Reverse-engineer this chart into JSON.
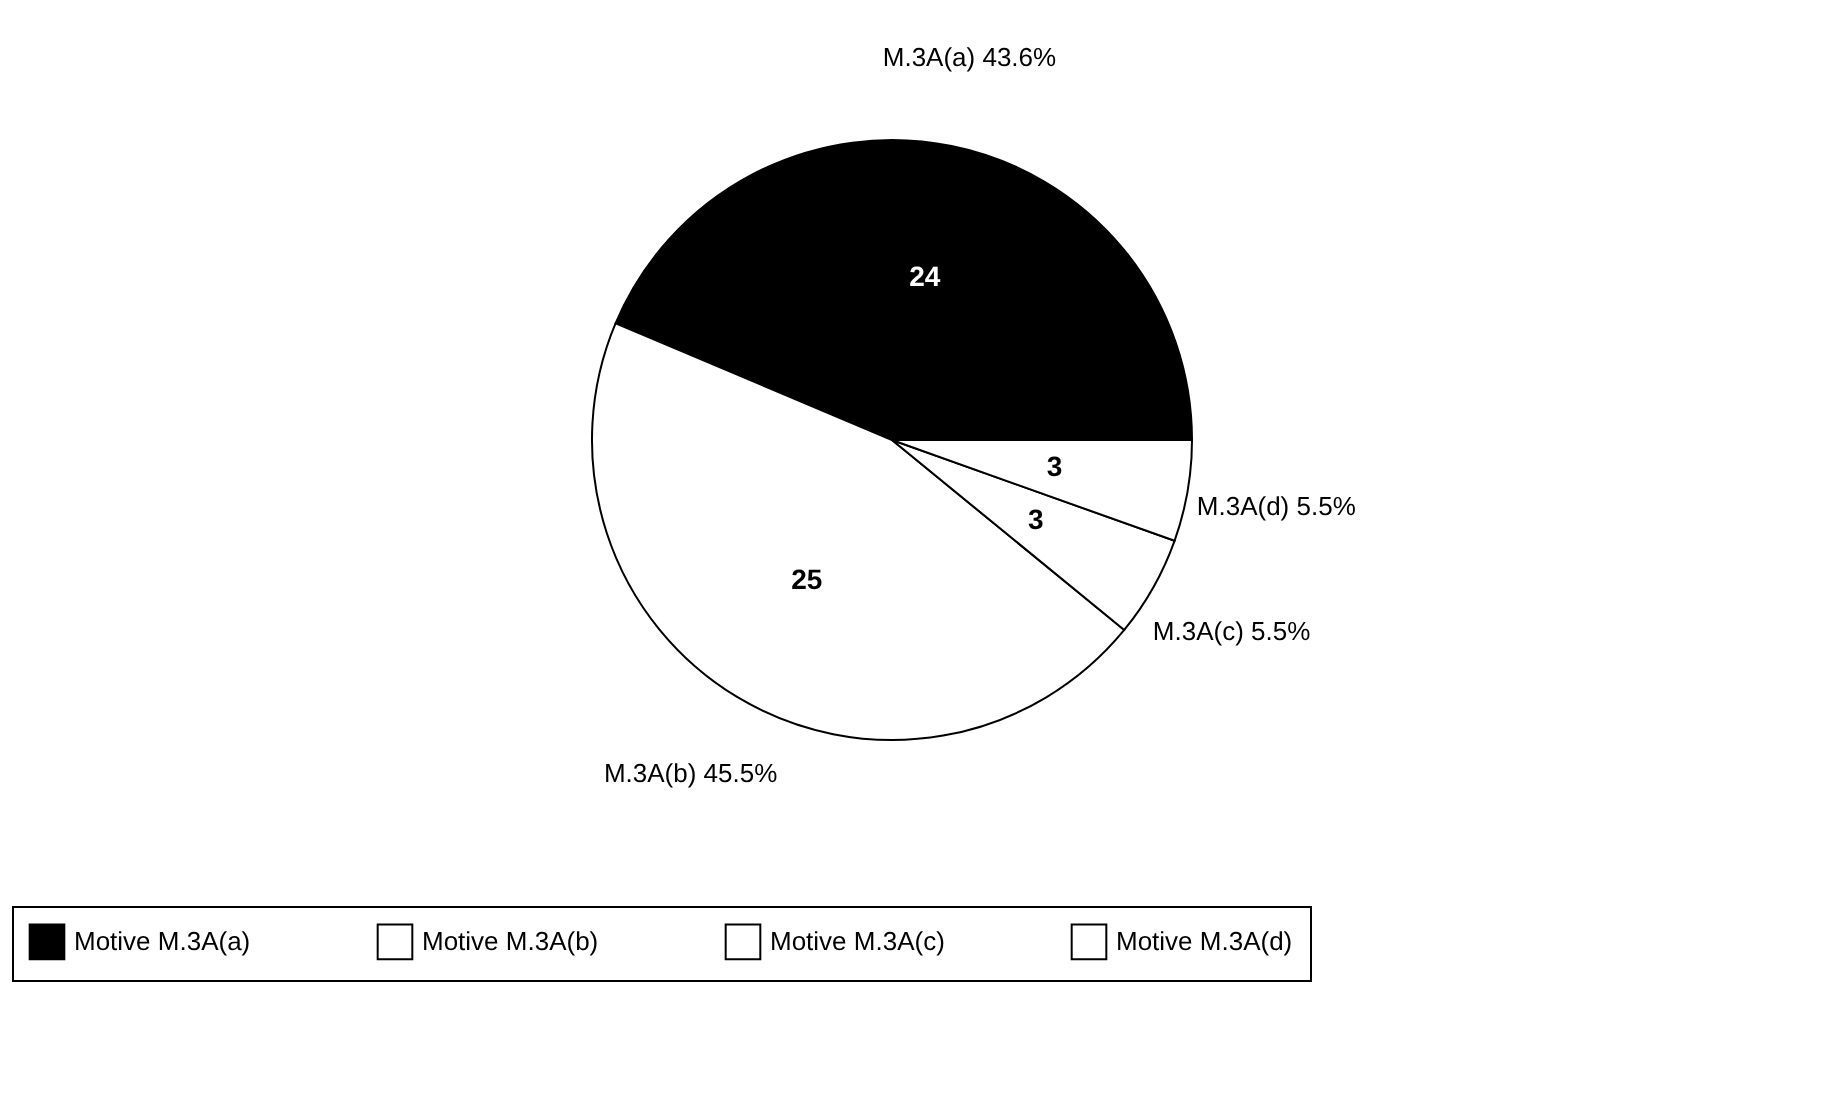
{
  "chart_data": {
    "type": "pie",
    "categories": [
      "Motive M.3A(a)",
      "Motive M.3A(b)",
      "Motive M.3A(c)",
      "Motive M.3A(d)"
    ],
    "values": [
      24,
      25,
      3,
      3
    ],
    "colors": [
      "#000000",
      "#ffffff",
      "#ffffff",
      "#ffffff"
    ],
    "data_labels": true,
    "annotations": [
      "M.3A(a) 43.6%",
      "M.3A(b) 45.5%",
      "M.3A(c) 5.5%",
      "M.3A(d) 5.5%"
    ],
    "legend": "bottom"
  }
}
